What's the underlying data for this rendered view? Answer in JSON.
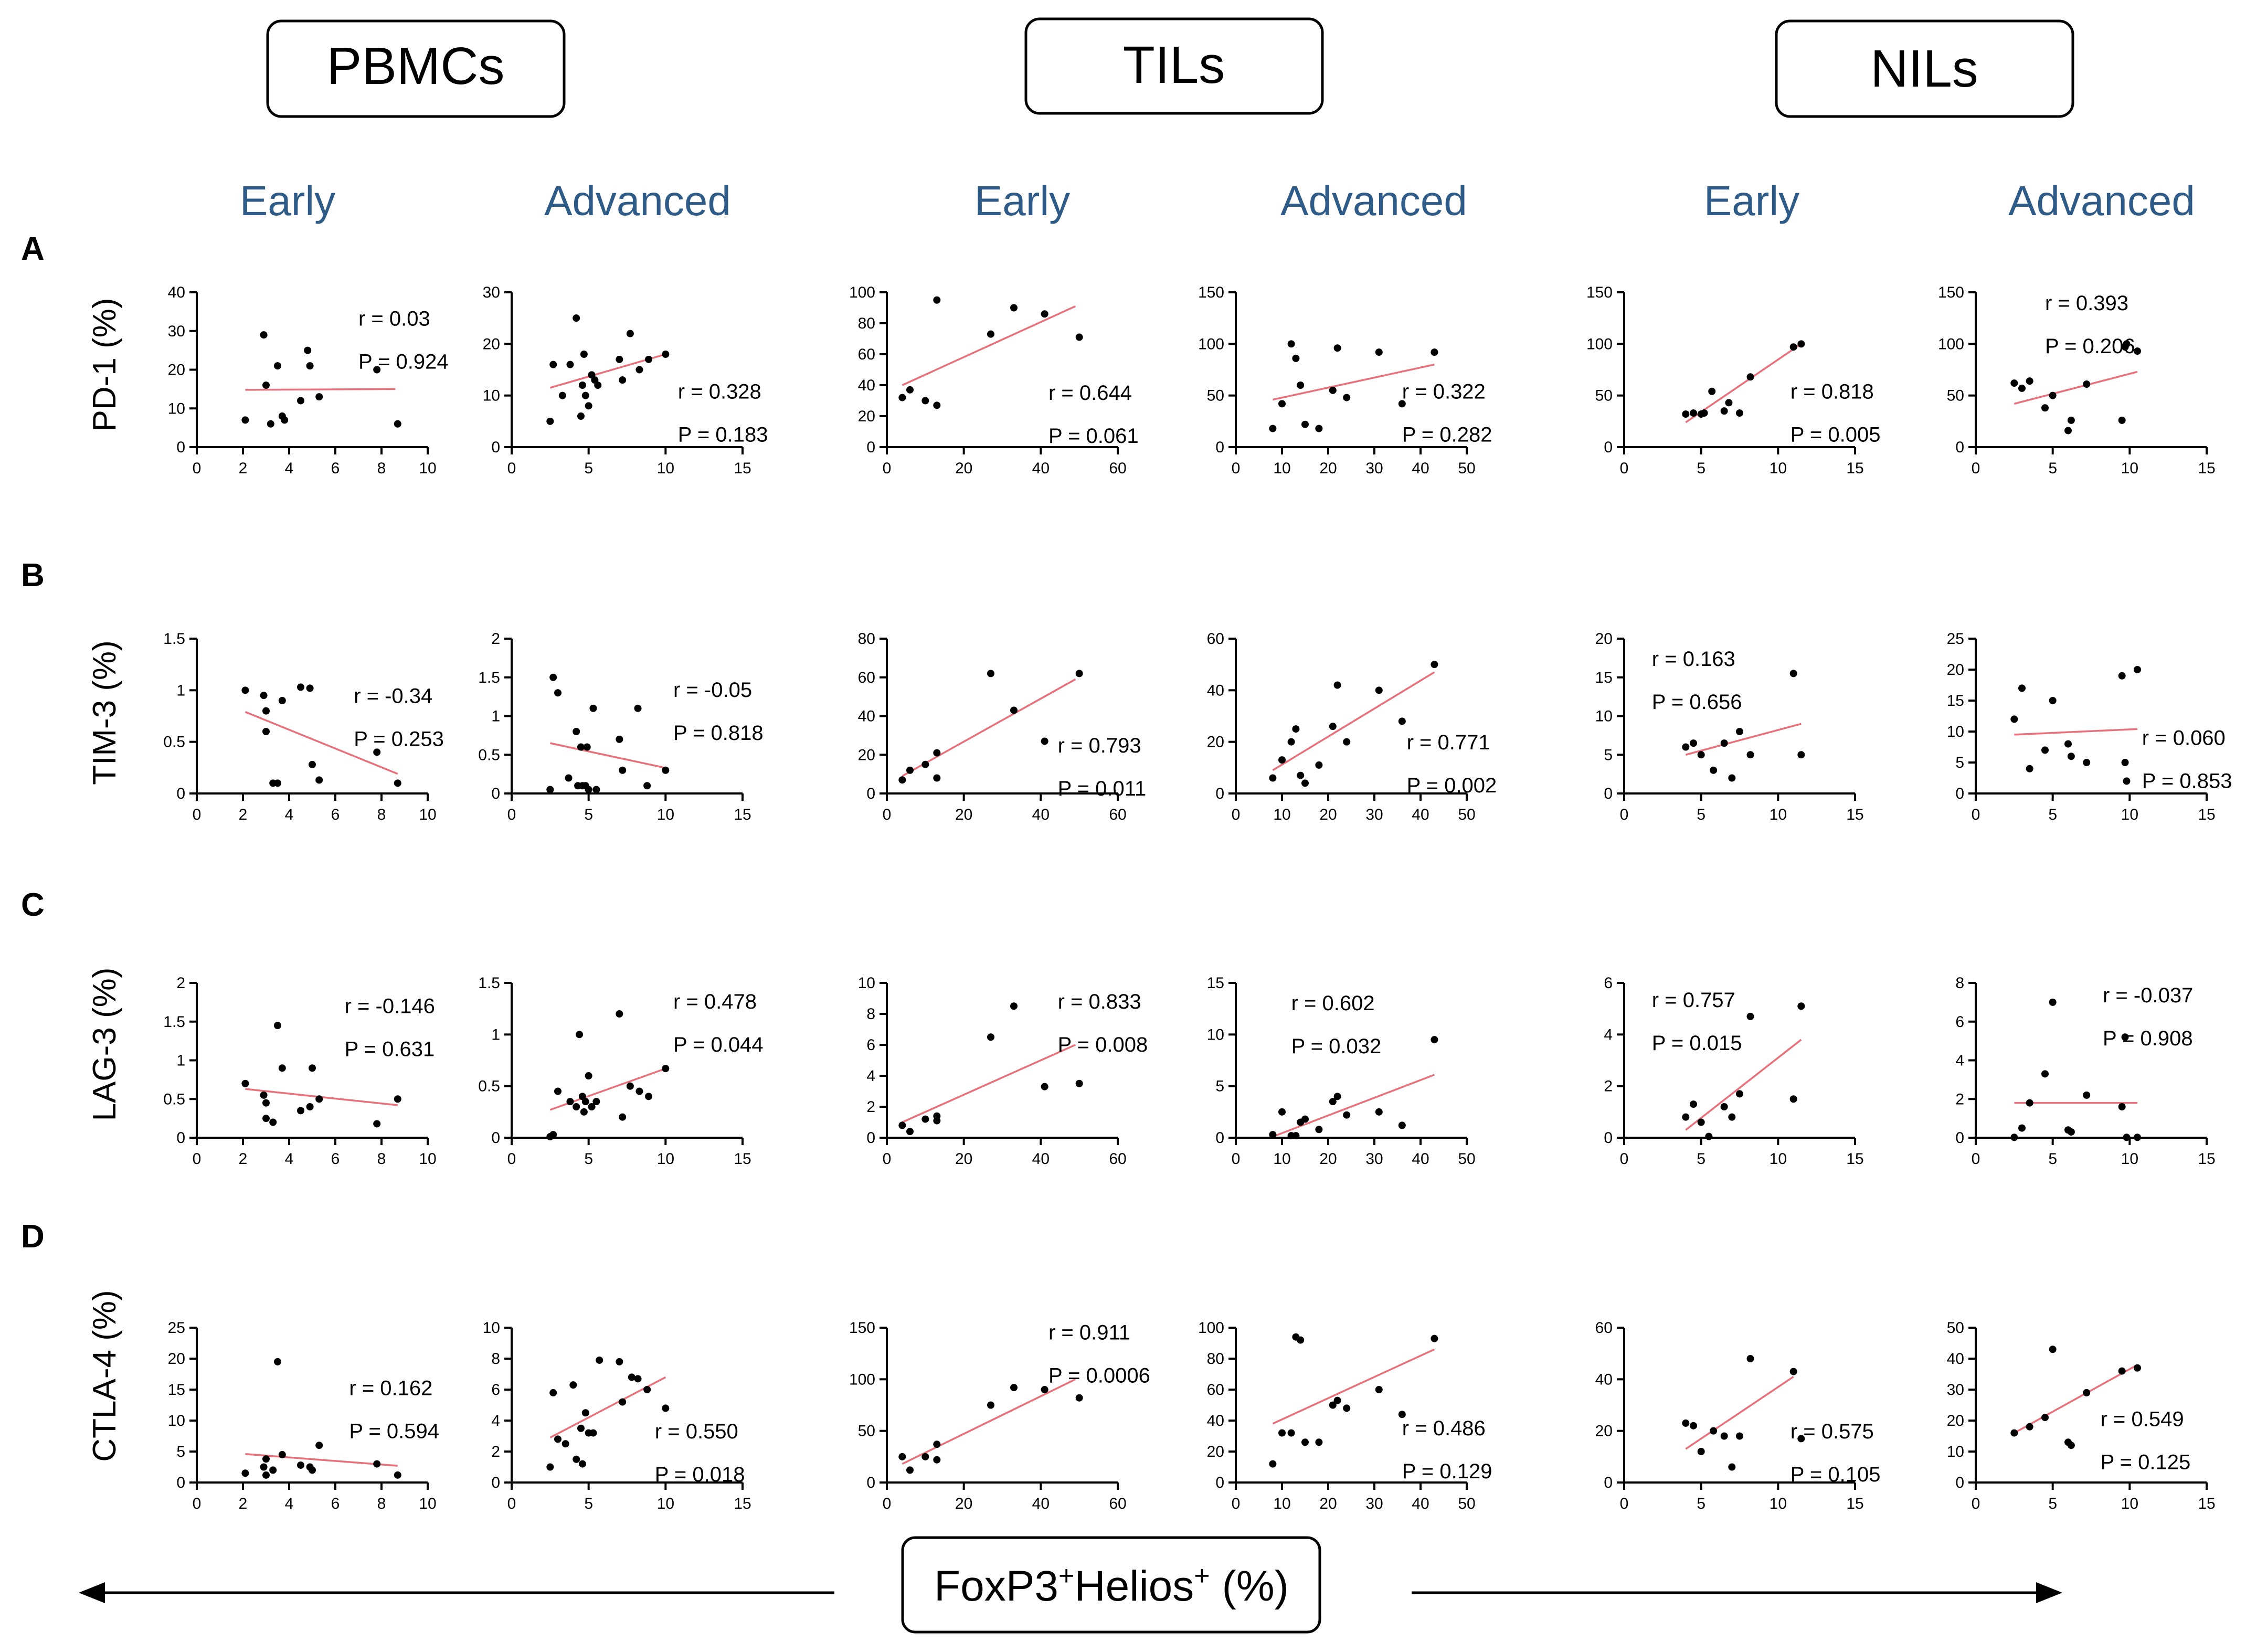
{
  "groups": [
    "PBMCs",
    "TILs",
    "NILs"
  ],
  "stages": [
    "Early",
    "Advanced",
    "Early",
    "Advanced",
    "Early",
    "Advanced"
  ],
  "rows": [
    {
      "letter": "A",
      "ylabel": "PD-1 (%)"
    },
    {
      "letter": "B",
      "ylabel": "TIM-3 (%)"
    },
    {
      "letter": "C",
      "ylabel": "LAG-3 (%)"
    },
    {
      "letter": "D",
      "ylabel": "CTLA-4 (%)"
    }
  ],
  "xaxis_label": {
    "main": "FoxP3",
    "sup1": "+",
    "mid": "Helios",
    "sup2": "+",
    "tail": " (%)"
  },
  "colors": {
    "text_blue": "#2e5b88",
    "axis": "#000000",
    "fit": "#e8707a",
    "point": "#000000"
  },
  "chart_data": [
    {
      "type": "scatter",
      "row": 0,
      "col": 0,
      "xlim": [
        0,
        10
      ],
      "xticks": [
        0,
        2,
        4,
        6,
        8,
        10
      ],
      "ylim": [
        0,
        40
      ],
      "yticks": [
        0,
        10,
        20,
        30,
        40
      ],
      "r": "r = 0.03",
      "p": "P = 0.924",
      "x": [
        2.1,
        2.9,
        3.0,
        3.2,
        3.5,
        3.7,
        3.8,
        4.5,
        4.8,
        4.9,
        5.3,
        7.8,
        8.7
      ],
      "y": [
        7,
        29,
        16,
        6,
        21,
        8,
        7,
        12,
        25,
        21,
        13,
        20,
        6
      ],
      "fit": [
        2.1,
        14.8,
        8.6,
        15.0
      ]
    },
    {
      "type": "scatter",
      "row": 0,
      "col": 1,
      "xlim": [
        0,
        15
      ],
      "xticks": [
        0,
        5,
        10,
        15
      ],
      "ylim": [
        0,
        30
      ],
      "yticks": [
        0,
        10,
        20,
        30
      ],
      "r": "r = 0.328",
      "p": "P = 0.183",
      "x": [
        2.5,
        2.7,
        3.3,
        3.8,
        4.2,
        4.5,
        4.6,
        4.7,
        4.8,
        5.0,
        5.2,
        5.4,
        5.6,
        7.0,
        7.2,
        7.7,
        8.3,
        8.9,
        10.0
      ],
      "y": [
        5,
        16,
        10,
        16,
        25,
        6,
        12,
        18,
        10,
        8,
        14,
        13,
        12,
        17,
        13,
        22,
        15,
        17,
        18
      ],
      "fit": [
        2.5,
        11.5,
        10.0,
        18.0
      ]
    },
    {
      "type": "scatter",
      "row": 0,
      "col": 2,
      "xlim": [
        0,
        60
      ],
      "xticks": [
        0,
        20,
        40,
        60
      ],
      "ylim": [
        0,
        100
      ],
      "yticks": [
        0,
        20,
        40,
        60,
        80,
        100
      ],
      "r": "r = 0.644",
      "p": "P = 0.061",
      "x": [
        4,
        6,
        10,
        13,
        13,
        27,
        33,
        41,
        50
      ],
      "y": [
        32,
        37,
        30,
        27,
        95,
        73,
        90,
        86,
        71
      ],
      "fit": [
        4,
        40,
        49,
        91
      ]
    },
    {
      "type": "scatter",
      "row": 0,
      "col": 3,
      "xlim": [
        0,
        50
      ],
      "xticks": [
        0,
        10,
        20,
        30,
        40,
        50
      ],
      "ylim": [
        0,
        150
      ],
      "yticks": [
        0,
        50,
        100,
        150
      ],
      "r": "r = 0.322",
      "p": "P = 0.282",
      "x": [
        8,
        10,
        12,
        13,
        14,
        15,
        18,
        21,
        22,
        24,
        31,
        36,
        43
      ],
      "y": [
        18,
        42,
        100,
        86,
        60,
        22,
        18,
        55,
        96,
        48,
        92,
        42,
        92
      ],
      "fit": [
        8,
        46,
        43,
        80
      ]
    },
    {
      "type": "scatter",
      "row": 0,
      "col": 4,
      "xlim": [
        0,
        15
      ],
      "xticks": [
        0,
        5,
        10,
        15
      ],
      "ylim": [
        0,
        150
      ],
      "yticks": [
        0,
        50,
        100,
        150
      ],
      "r": "r = 0.818",
      "p": "P = 0.005",
      "x": [
        4.0,
        4.5,
        5.0,
        5.2,
        5.7,
        6.5,
        6.8,
        7.5,
        8.2,
        11.0,
        11.5
      ],
      "y": [
        32,
        33,
        32,
        33,
        54,
        35,
        43,
        33,
        68,
        97,
        100
      ],
      "fit": [
        4.0,
        24,
        11.5,
        100
      ]
    },
    {
      "type": "scatter",
      "row": 0,
      "col": 5,
      "xlim": [
        0,
        15
      ],
      "xticks": [
        0,
        5,
        10,
        15
      ],
      "ylim": [
        0,
        150
      ],
      "yticks": [
        0,
        50,
        100,
        150
      ],
      "r": "r = 0.393",
      "p": "P = 0.206",
      "x": [
        2.5,
        3.0,
        3.5,
        4.5,
        5.0,
        6.0,
        6.2,
        7.2,
        9.5,
        9.7,
        9.8,
        10.5
      ],
      "y": [
        62,
        57,
        64,
        38,
        50,
        16,
        26,
        61,
        26,
        97,
        100,
        93
      ],
      "fit": [
        2.5,
        42,
        10.5,
        73
      ]
    },
    {
      "type": "scatter",
      "row": 1,
      "col": 0,
      "xlim": [
        0,
        10
      ],
      "xticks": [
        0,
        2,
        4,
        6,
        8,
        10
      ],
      "ylim": [
        0,
        1.5
      ],
      "yticks": [
        0,
        0.5,
        1.0,
        1.5
      ],
      "r": "r = -0.34",
      "p": "P = 0.253",
      "x": [
        2.1,
        2.9,
        3.0,
        3.0,
        3.3,
        3.5,
        3.7,
        4.5,
        4.9,
        5.0,
        5.3,
        7.8,
        8.7
      ],
      "y": [
        1.0,
        0.95,
        0.8,
        0.6,
        0.1,
        0.1,
        0.9,
        1.03,
        1.02,
        0.28,
        0.13,
        0.4,
        0.1
      ],
      "fit": [
        2.1,
        0.79,
        8.7,
        0.19
      ]
    },
    {
      "type": "scatter",
      "row": 1,
      "col": 1,
      "xlim": [
        0,
        15
      ],
      "xticks": [
        0,
        5,
        10,
        15
      ],
      "ylim": [
        0,
        2.0
      ],
      "yticks": [
        0,
        0.5,
        1.0,
        1.5,
        2.0
      ],
      "r": "r = -0.05",
      "p": "P = 0.818",
      "x": [
        2.5,
        2.7,
        3.0,
        3.7,
        4.2,
        4.3,
        4.5,
        4.6,
        4.8,
        4.9,
        5.0,
        5.3,
        5.5,
        7.0,
        7.2,
        8.2,
        8.8,
        10.0
      ],
      "y": [
        0.05,
        1.5,
        1.3,
        0.2,
        0.8,
        0.1,
        0.6,
        0.1,
        0.1,
        0.6,
        0.05,
        1.1,
        0.05,
        0.7,
        0.3,
        1.1,
        0.1,
        0.3
      ],
      "fit": [
        2.5,
        0.65,
        10.0,
        0.33
      ]
    },
    {
      "type": "scatter",
      "row": 1,
      "col": 2,
      "xlim": [
        0,
        60
      ],
      "xticks": [
        0,
        20,
        40,
        60
      ],
      "ylim": [
        0,
        80
      ],
      "yticks": [
        0,
        20,
        40,
        60,
        80
      ],
      "r": "r = 0.793",
      "p": "P = 0.011",
      "x": [
        4,
        6,
        10,
        13,
        13,
        27,
        33,
        41,
        50
      ],
      "y": [
        7,
        12,
        15,
        21,
        8,
        62,
        43,
        27,
        62
      ],
      "fit": [
        4,
        9,
        49,
        59
      ]
    },
    {
      "type": "scatter",
      "row": 1,
      "col": 3,
      "xlim": [
        0,
        50
      ],
      "xticks": [
        0,
        10,
        20,
        30,
        40,
        50
      ],
      "ylim": [
        0,
        60
      ],
      "yticks": [
        0,
        20,
        40,
        60
      ],
      "r": "r = 0.771",
      "p": "P = 0.002",
      "x": [
        8,
        10,
        12,
        13,
        14,
        15,
        18,
        21,
        22,
        24,
        31,
        36,
        43
      ],
      "y": [
        6,
        13,
        20,
        25,
        7,
        4,
        11,
        26,
        42,
        20,
        40,
        28,
        50
      ],
      "fit": [
        8,
        9,
        43,
        47
      ]
    },
    {
      "type": "scatter",
      "row": 1,
      "col": 4,
      "xlim": [
        0,
        15
      ],
      "xticks": [
        0,
        5,
        10,
        15
      ],
      "ylim": [
        0,
        20
      ],
      "yticks": [
        0,
        5,
        10,
        15,
        20
      ],
      "r": "r = 0.163",
      "p": "P = 0.656",
      "x": [
        4.0,
        4.5,
        5.0,
        5.8,
        6.5,
        7.0,
        7.5,
        8.2,
        11.0,
        11.5
      ],
      "y": [
        6,
        6.5,
        5,
        3,
        6.5,
        2,
        8,
        5,
        15.5,
        5
      ],
      "fit": [
        4.0,
        5,
        11.5,
        9
      ]
    },
    {
      "type": "scatter",
      "row": 1,
      "col": 5,
      "xlim": [
        0,
        15
      ],
      "xticks": [
        0,
        5,
        10,
        15
      ],
      "ylim": [
        0,
        25
      ],
      "yticks": [
        0,
        5,
        10,
        15,
        20,
        25
      ],
      "r": "r = 0.060",
      "p": "P = 0.853",
      "x": [
        2.5,
        3.0,
        3.5,
        4.5,
        5.0,
        6.0,
        6.2,
        7.2,
        9.5,
        9.7,
        9.8,
        10.5
      ],
      "y": [
        12,
        17,
        4,
        7,
        15,
        8,
        6,
        5,
        19,
        5,
        2,
        20
      ],
      "fit": [
        2.5,
        9.5,
        10.5,
        10.4
      ]
    },
    {
      "type": "scatter",
      "row": 2,
      "col": 0,
      "xlim": [
        0,
        10
      ],
      "xticks": [
        0,
        2,
        4,
        6,
        8,
        10
      ],
      "ylim": [
        0,
        2.0
      ],
      "yticks": [
        0,
        0.5,
        1.0,
        1.5,
        2.0
      ],
      "r": "r = -0.146",
      "p": "P = 0.631",
      "x": [
        2.1,
        2.9,
        3.0,
        3.0,
        3.3,
        3.5,
        3.7,
        4.5,
        4.9,
        5.0,
        5.3,
        7.8,
        8.7
      ],
      "y": [
        0.7,
        0.55,
        0.25,
        0.45,
        0.2,
        1.45,
        0.9,
        0.35,
        0.4,
        0.9,
        0.5,
        0.18,
        0.5
      ],
      "fit": [
        2.1,
        0.63,
        8.7,
        0.42
      ]
    },
    {
      "type": "scatter",
      "row": 2,
      "col": 1,
      "xlim": [
        0,
        15
      ],
      "xticks": [
        0,
        5,
        10,
        15
      ],
      "ylim": [
        0,
        1.5
      ],
      "yticks": [
        0,
        0.5,
        1.0,
        1.5
      ],
      "r": "r = 0.478",
      "p": "P = 0.044",
      "x": [
        2.5,
        2.7,
        3.0,
        3.8,
        4.2,
        4.4,
        4.6,
        4.7,
        4.8,
        5.0,
        5.2,
        5.5,
        7.0,
        7.2,
        7.7,
        8.3,
        8.9,
        10.0
      ],
      "y": [
        0.01,
        0.03,
        0.45,
        0.35,
        0.3,
        1.0,
        0.4,
        0.25,
        0.35,
        0.6,
        0.3,
        0.35,
        1.2,
        0.2,
        0.5,
        0.45,
        0.4,
        0.67
      ],
      "fit": [
        2.5,
        0.27,
        10.0,
        0.67
      ]
    },
    {
      "type": "scatter",
      "row": 2,
      "col": 2,
      "xlim": [
        0,
        60
      ],
      "xticks": [
        0,
        20,
        40,
        60
      ],
      "ylim": [
        0,
        10
      ],
      "yticks": [
        0,
        2,
        4,
        6,
        8,
        10
      ],
      "r": "r = 0.833",
      "p": "P = 0.008",
      "x": [
        4,
        6,
        10,
        13,
        13,
        27,
        33,
        41,
        50
      ],
      "y": [
        0.8,
        0.4,
        1.2,
        1.4,
        1.1,
        6.5,
        8.5,
        3.3,
        3.5
      ],
      "fit": [
        4,
        1.0,
        49,
        6.0
      ]
    },
    {
      "type": "scatter",
      "row": 2,
      "col": 3,
      "xlim": [
        0,
        50
      ],
      "xticks": [
        0,
        10,
        20,
        30,
        40,
        50
      ],
      "ylim": [
        0,
        15
      ],
      "yticks": [
        0,
        5,
        10,
        15
      ],
      "r": "r = 0.602",
      "p": "P = 0.032",
      "x": [
        8,
        10,
        12,
        13,
        14,
        15,
        18,
        21,
        22,
        24,
        31,
        36,
        43
      ],
      "y": [
        0.3,
        2.5,
        0.2,
        0.2,
        1.5,
        1.8,
        0.8,
        3.5,
        4.0,
        2.2,
        2.5,
        1.2,
        9.5
      ],
      "fit": [
        8,
        0.1,
        43,
        6.1
      ]
    },
    {
      "type": "scatter",
      "row": 2,
      "col": 4,
      "xlim": [
        0,
        15
      ],
      "xticks": [
        0,
        5,
        10,
        15
      ],
      "ylim": [
        0,
        6
      ],
      "yticks": [
        0,
        2,
        4,
        6
      ],
      "r": "r = 0.757",
      "p": "P = 0.015",
      "x": [
        4.0,
        4.5,
        5.0,
        5.5,
        6.5,
        7.0,
        7.5,
        8.2,
        11.0,
        11.5
      ],
      "y": [
        0.8,
        1.3,
        0.6,
        0.05,
        1.2,
        0.8,
        1.7,
        4.7,
        1.5,
        5.1
      ],
      "fit": [
        4.0,
        0.3,
        11.5,
        3.8
      ]
    },
    {
      "type": "scatter",
      "row": 2,
      "col": 5,
      "xlim": [
        0,
        15
      ],
      "xticks": [
        0,
        5,
        10,
        15
      ],
      "ylim": [
        0,
        8
      ],
      "yticks": [
        0,
        2,
        4,
        6,
        8
      ],
      "r": "r = -0.037",
      "p": "P = 0.908",
      "x": [
        2.5,
        3.0,
        3.5,
        4.5,
        5.0,
        6.0,
        6.2,
        7.2,
        9.5,
        9.7,
        9.8,
        10.5
      ],
      "y": [
        0.02,
        0.5,
        1.8,
        3.3,
        7.0,
        0.4,
        0.3,
        2.2,
        1.6,
        5.2,
        0.02,
        0.02
      ],
      "fit": [
        2.5,
        1.8,
        10.5,
        1.8
      ]
    },
    {
      "type": "scatter",
      "row": 3,
      "col": 0,
      "xlim": [
        0,
        10
      ],
      "xticks": [
        0,
        2,
        4,
        6,
        8,
        10
      ],
      "ylim": [
        0,
        25
      ],
      "yticks": [
        0,
        5,
        10,
        15,
        20,
        25
      ],
      "r": "r = 0.162",
      "p": "P = 0.594",
      "x": [
        2.1,
        2.9,
        3.0,
        3.0,
        3.3,
        3.5,
        3.7,
        4.5,
        4.9,
        5.0,
        5.3,
        7.8,
        8.7
      ],
      "y": [
        1.5,
        2.5,
        3.8,
        1.2,
        2.0,
        19.5,
        4.5,
        2.8,
        2.5,
        2.0,
        6.0,
        3.0,
        1.2
      ],
      "fit": [
        2.1,
        4.6,
        8.7,
        2.7
      ]
    },
    {
      "type": "scatter",
      "row": 3,
      "col": 1,
      "xlim": [
        0,
        15
      ],
      "xticks": [
        0,
        5,
        10,
        15
      ],
      "ylim": [
        0,
        10
      ],
      "yticks": [
        0,
        2,
        4,
        6,
        8,
        10
      ],
      "r": "r = 0.550",
      "p": "P = 0.018",
      "x": [
        2.5,
        2.7,
        3.0,
        3.5,
        4.0,
        4.2,
        4.5,
        4.6,
        4.8,
        5.0,
        5.3,
        5.7,
        7.0,
        7.2,
        7.8,
        8.2,
        8.8,
        10.0
      ],
      "y": [
        1.0,
        5.8,
        2.8,
        2.5,
        6.3,
        1.5,
        3.5,
        1.2,
        4.5,
        3.2,
        3.2,
        7.9,
        7.8,
        5.2,
        6.8,
        6.7,
        6.0,
        4.8
      ],
      "fit": [
        2.5,
        2.9,
        10.0,
        6.8
      ]
    },
    {
      "type": "scatter",
      "row": 3,
      "col": 2,
      "xlim": [
        0,
        60
      ],
      "xticks": [
        0,
        20,
        40,
        60
      ],
      "ylim": [
        0,
        150
      ],
      "yticks": [
        0,
        50,
        100,
        150
      ],
      "r": "r = 0.911",
      "p": "P = 0.0006",
      "x": [
        4,
        6,
        10,
        13,
        13,
        27,
        33,
        41,
        50
      ],
      "y": [
        25,
        12,
        25,
        37,
        22,
        75,
        92,
        90,
        82
      ],
      "fit": [
        4,
        18,
        49,
        100
      ]
    },
    {
      "type": "scatter",
      "row": 3,
      "col": 3,
      "xlim": [
        0,
        50
      ],
      "xticks": [
        0,
        10,
        20,
        30,
        40,
        50
      ],
      "ylim": [
        0,
        100
      ],
      "yticks": [
        0,
        20,
        40,
        60,
        80,
        100
      ],
      "r": "r = 0.486",
      "p": "P = 0.129",
      "x": [
        8,
        10,
        12,
        13,
        14,
        15,
        18,
        21,
        22,
        24,
        31,
        36,
        43
      ],
      "y": [
        12,
        32,
        32,
        94,
        92,
        26,
        26,
        50,
        53,
        48,
        60,
        44,
        93
      ],
      "fit": [
        8,
        38,
        43,
        86
      ]
    },
    {
      "type": "scatter",
      "row": 3,
      "col": 4,
      "xlim": [
        0,
        15
      ],
      "xticks": [
        0,
        5,
        10,
        15
      ],
      "ylim": [
        0,
        60
      ],
      "yticks": [
        0,
        20,
        40,
        60
      ],
      "r": "r = 0.575",
      "p": "P = 0.105",
      "x": [
        4.0,
        4.5,
        5.0,
        5.8,
        6.5,
        7.0,
        7.5,
        8.2,
        11.0,
        11.5
      ],
      "y": [
        23,
        22,
        12,
        20,
        18,
        6,
        18,
        48,
        43,
        17
      ],
      "fit": [
        4.0,
        13,
        11.0,
        41
      ]
    },
    {
      "type": "scatter",
      "row": 3,
      "col": 5,
      "xlim": [
        0,
        15
      ],
      "xticks": [
        0,
        5,
        10,
        15
      ],
      "ylim": [
        0,
        50
      ],
      "yticks": [
        0,
        10,
        20,
        30,
        40,
        50
      ],
      "r": "r = 0.549",
      "p": "P = 0.125",
      "x": [
        2.5,
        3.5,
        4.5,
        5.0,
        6.0,
        6.2,
        7.2,
        9.5,
        10.5
      ],
      "y": [
        16,
        18,
        21,
        43,
        13,
        12,
        29,
        36,
        37
      ],
      "fit": [
        2.5,
        16,
        10.5,
        38
      ]
    }
  ]
}
